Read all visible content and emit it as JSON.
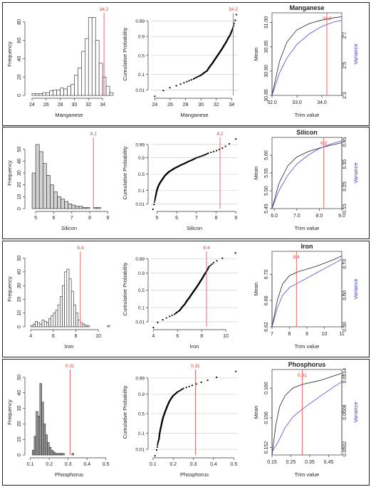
{
  "chart_data": [
    {
      "element": "Manganese",
      "cutoff": 34.2,
      "cutoff_label": "34.2",
      "histogram": {
        "type": "histogram",
        "xlabel": "Manganese",
        "ylabel": "Frequency",
        "fill": "#ffffff",
        "xlim": [
          23.5,
          35
        ],
        "ylim": [
          0,
          90
        ],
        "xticks": [
          "24",
          "26",
          "28",
          "30",
          "32",
          "34"
        ],
        "xtick_values": [
          24,
          26,
          28,
          30,
          32,
          34
        ],
        "yticks": [
          "0",
          "20",
          "40",
          "60",
          "80"
        ],
        "ytick_values": [
          0,
          20,
          40,
          60,
          80
        ],
        "bin_start": 24,
        "bin_width": 0.5,
        "counts": [
          2,
          2,
          2,
          3,
          3,
          5,
          6,
          6,
          8,
          7,
          10,
          12,
          22,
          30,
          48,
          62,
          85,
          85,
          60,
          35,
          20,
          10,
          3
        ]
      },
      "ecdf": {
        "type": "scatter",
        "xlabel": "Manganese",
        "ylabel": "Cumulative Probability",
        "xlim": [
          23.5,
          34.8
        ],
        "xticks": [
          "24",
          "26",
          "28",
          "30",
          "32",
          "34"
        ],
        "xtick_values": [
          24,
          26,
          28,
          30,
          32,
          34
        ],
        "yticks": [
          "0.01",
          "0.1",
          "0.5",
          "0.9",
          "0.99"
        ],
        "ytick_values": [
          0.01,
          0.1,
          0.5,
          0.9,
          0.99
        ],
        "x_min": 24.0,
        "x_max": 34.6,
        "n": 170,
        "curve": [
          [
            24.0,
            0.004
          ],
          [
            24.5,
            0.005
          ],
          [
            25.3,
            0.01
          ],
          [
            26.0,
            0.015
          ],
          [
            27.0,
            0.022
          ],
          [
            28.0,
            0.035
          ],
          [
            29.0,
            0.055
          ],
          [
            30.0,
            0.09
          ],
          [
            30.8,
            0.15
          ],
          [
            31.5,
            0.3
          ],
          [
            32.0,
            0.45
          ],
          [
            32.5,
            0.6
          ],
          [
            33.0,
            0.75
          ],
          [
            33.5,
            0.87
          ],
          [
            34.0,
            0.95
          ],
          [
            34.3,
            0.985
          ],
          [
            34.6,
            0.997
          ]
        ]
      },
      "trim": {
        "title": "Manganese",
        "xlabel": "Trim value",
        "ylabel_left": "Mean",
        "ylabel_right": "Variance",
        "xlim": [
          32.0,
          34.8
        ],
        "xticks": [
          "32.0",
          "33.0",
          "34.0"
        ],
        "xtick_values": [
          32.0,
          33.0,
          34.0
        ],
        "ylim_left": [
          30.85,
          31.02
        ],
        "yticks_left": [
          "30.85",
          "30.90",
          "30.95",
          "31.00"
        ],
        "ytick_values_left": [
          30.85,
          30.9,
          30.95,
          31.0
        ],
        "ylim_right": [
          2.3,
          2.85
        ],
        "yticks_right": [
          "2.3",
          "2.5",
          "2.7"
        ],
        "ytick_values_right": [
          2.3,
          2.5,
          2.7
        ],
        "mean": [
          [
            32.0,
            30.85
          ],
          [
            32.3,
            30.92
          ],
          [
            32.6,
            30.96
          ],
          [
            33.0,
            30.985
          ],
          [
            33.5,
            30.998
          ],
          [
            34.0,
            31.005
          ],
          [
            34.5,
            31.01
          ],
          [
            34.8,
            31.012
          ]
        ],
        "variance": [
          [
            32.0,
            2.3
          ],
          [
            32.3,
            2.45
          ],
          [
            32.6,
            2.55
          ],
          [
            33.0,
            2.64
          ],
          [
            33.5,
            2.71
          ],
          [
            34.0,
            2.76
          ],
          [
            34.5,
            2.79
          ],
          [
            34.8,
            2.8
          ]
        ]
      }
    },
    {
      "element": "Silicon",
      "cutoff": 8.2,
      "cutoff_label": "8.2",
      "histogram": {
        "type": "histogram",
        "xlabel": "Silicon",
        "ylabel": "Frequency",
        "fill": "#d3d3d3",
        "xlim": [
          4.6,
          9.1
        ],
        "ylim": [
          0,
          60
        ],
        "xticks": [
          "5",
          "6",
          "7",
          "8",
          "9"
        ],
        "xtick_values": [
          5,
          6,
          7,
          8,
          9
        ],
        "yticks": [
          "0",
          "10",
          "20",
          "30",
          "40",
          "50"
        ],
        "ytick_values": [
          0,
          10,
          20,
          30,
          40,
          50
        ],
        "bin_start": 4.8,
        "bin_width": 0.2,
        "counts": [
          30,
          54,
          48,
          38,
          28,
          20,
          14,
          10,
          8,
          6,
          4,
          3,
          2,
          2,
          1,
          1,
          0,
          1,
          1,
          0,
          0
        ]
      },
      "ecdf": {
        "type": "scatter",
        "xlabel": "Silicon",
        "ylabel": "Cumulative Probability",
        "xlim": [
          4.7,
          9.1
        ],
        "xticks": [
          "5",
          "6",
          "7",
          "8",
          "9"
        ],
        "xtick_values": [
          5,
          6,
          7,
          8,
          9
        ],
        "yticks": [
          "0.01",
          "0.1",
          "0.5",
          "0.9",
          "0.99"
        ],
        "ytick_values": [
          0.01,
          0.1,
          0.5,
          0.9,
          0.99
        ],
        "x_min": 4.8,
        "x_max": 9.0,
        "n": 170,
        "curve": [
          [
            4.8,
            0.003
          ],
          [
            4.85,
            0.008
          ],
          [
            4.9,
            0.02
          ],
          [
            4.95,
            0.05
          ],
          [
            5.0,
            0.1
          ],
          [
            5.1,
            0.2
          ],
          [
            5.25,
            0.32
          ],
          [
            5.4,
            0.45
          ],
          [
            5.6,
            0.57
          ],
          [
            5.9,
            0.68
          ],
          [
            6.2,
            0.76
          ],
          [
            6.6,
            0.84
          ],
          [
            7.0,
            0.9
          ],
          [
            7.6,
            0.95
          ],
          [
            8.2,
            0.975
          ],
          [
            8.6,
            0.99
          ],
          [
            9.0,
            0.997
          ]
        ]
      },
      "trim": {
        "title": "Silicon",
        "xlabel": "Trim value",
        "ylabel_left": "Mean",
        "ylabel_right": "Variance",
        "xlim": [
          5.9,
          9.0
        ],
        "xticks": [
          "6.0",
          "7.0",
          "8.0",
          "9.0"
        ],
        "xtick_values": [
          6.0,
          7.0,
          8.0,
          9.0
        ],
        "ylim_left": [
          5.45,
          5.65
        ],
        "yticks_left": [
          "5.45",
          "5.50",
          "5.55",
          "5.60"
        ],
        "ytick_values_left": [
          5.45,
          5.5,
          5.55,
          5.6
        ],
        "ylim_right": [
          0.15,
          0.47
        ],
        "yticks_right": [
          "0.15",
          "0.25",
          "0.35",
          "0.45"
        ],
        "ytick_values_right": [
          0.15,
          0.25,
          0.35,
          0.45
        ],
        "mean": [
          [
            5.9,
            5.45
          ],
          [
            6.2,
            5.52
          ],
          [
            6.6,
            5.57
          ],
          [
            7.0,
            5.595
          ],
          [
            7.5,
            5.61
          ],
          [
            8.0,
            5.62
          ],
          [
            8.5,
            5.628
          ],
          [
            9.0,
            5.635
          ]
        ],
        "variance": [
          [
            5.9,
            0.15
          ],
          [
            6.2,
            0.23
          ],
          [
            6.6,
            0.3
          ],
          [
            7.0,
            0.35
          ],
          [
            7.5,
            0.39
          ],
          [
            8.0,
            0.42
          ],
          [
            8.5,
            0.44
          ],
          [
            9.0,
            0.455
          ]
        ]
      }
    },
    {
      "element": "Iron",
      "cutoff": 8.4,
      "cutoff_label": "8.4",
      "histogram": {
        "type": "histogram",
        "xlabel": "Iron",
        "ylabel": "Frequency",
        "fill": "#ffffff",
        "xlim": [
          3.8,
          11
        ],
        "ylim": [
          0,
          55
        ],
        "xticks": [
          "4",
          "6",
          "8",
          "10"
        ],
        "xtick_values": [
          4,
          6,
          8,
          10
        ],
        "yticks": [
          "0",
          "10",
          "20",
          "30",
          "40",
          "50"
        ],
        "ytick_values": [
          0,
          10,
          20,
          30,
          40,
          50
        ],
        "bin_start": 4.0,
        "bin_width": 0.2,
        "counts": [
          1,
          2,
          4,
          3,
          2,
          5,
          4,
          3,
          6,
          8,
          10,
          12,
          16,
          22,
          30,
          40,
          42,
          35,
          26,
          16,
          10,
          5,
          3,
          2,
          1,
          1,
          0,
          0,
          0,
          0,
          0,
          0,
          0,
          0,
          1
        ]
      },
      "ecdf": {
        "type": "scatter",
        "xlabel": "Iron",
        "ylabel": "Cumulative Probability",
        "xlim": [
          3.8,
          11
        ],
        "xticks": [
          "4",
          "6",
          "8",
          "10"
        ],
        "xtick_values": [
          4,
          6,
          8,
          10
        ],
        "yticks": [
          "0.01",
          "0.1",
          "0.5",
          "0.9",
          "0.99"
        ],
        "ytick_values": [
          0.01,
          0.1,
          0.5,
          0.9,
          0.99
        ],
        "x_min": 4.0,
        "x_max": 10.8,
        "n": 170,
        "curve": [
          [
            4.0,
            0.004
          ],
          [
            4.3,
            0.008
          ],
          [
            4.8,
            0.015
          ],
          [
            5.3,
            0.025
          ],
          [
            5.8,
            0.04
          ],
          [
            6.2,
            0.07
          ],
          [
            6.6,
            0.15
          ],
          [
            7.0,
            0.3
          ],
          [
            7.3,
            0.45
          ],
          [
            7.6,
            0.6
          ],
          [
            7.9,
            0.75
          ],
          [
            8.2,
            0.87
          ],
          [
            8.4,
            0.92
          ],
          [
            8.6,
            0.96
          ],
          [
            9.0,
            0.98
          ],
          [
            9.5,
            0.99
          ],
          [
            10.8,
            0.997
          ]
        ]
      },
      "trim": {
        "title": "Iron",
        "xlabel": "Trim value",
        "ylabel_left": "Mean",
        "ylabel_right": "Variance",
        "xlim": [
          7.0,
          11.0
        ],
        "xticks": [
          "7",
          "8",
          "9",
          "10",
          "11"
        ],
        "xtick_values": [
          7,
          8,
          9,
          10,
          11
        ],
        "ylim_left": [
          6.62,
          6.735
        ],
        "yticks_left": [
          "6.62",
          "6.66",
          "6.70"
        ],
        "ytick_values_left": [
          6.62,
          6.66,
          6.7
        ],
        "ylim_right": [
          0.5,
          0.74
        ],
        "yticks_right": [
          "0.50",
          "0.60",
          "0.70"
        ],
        "ytick_values_right": [
          0.5,
          0.6,
          0.7
        ],
        "mean": [
          [
            7.0,
            6.62
          ],
          [
            7.3,
            6.66
          ],
          [
            7.6,
            6.685
          ],
          [
            8.0,
            6.698
          ],
          [
            8.5,
            6.704
          ],
          [
            9.5,
            6.712
          ],
          [
            10.5,
            6.722
          ],
          [
            11.0,
            6.728
          ]
        ],
        "variance": [
          [
            7.0,
            0.5
          ],
          [
            7.3,
            0.56
          ],
          [
            7.6,
            0.6
          ],
          [
            8.0,
            0.625
          ],
          [
            8.5,
            0.64
          ],
          [
            9.5,
            0.67
          ],
          [
            10.5,
            0.7
          ],
          [
            11.0,
            0.715
          ]
        ]
      }
    },
    {
      "element": "Phosphorus",
      "cutoff": 0.31,
      "cutoff_label": "0.31",
      "histogram": {
        "type": "histogram",
        "xlabel": "Phosphorus",
        "ylabel": "Frequency",
        "fill": "#9e9e9e",
        "xlim": [
          0.09,
          0.52
        ],
        "ylim": [
          0,
          55
        ],
        "xticks": [
          "0.1",
          "0.2",
          "0.3",
          "0.4",
          "0.5"
        ],
        "xtick_values": [
          0.1,
          0.2,
          0.3,
          0.4,
          0.5
        ],
        "yticks": [
          "0",
          "10",
          "20",
          "30",
          "40",
          "50"
        ],
        "ytick_values": [
          0,
          10,
          20,
          30,
          40,
          50
        ],
        "bin_start": 0.11,
        "bin_width": 0.01,
        "counts": [
          3,
          12,
          28,
          25,
          46,
          34,
          20,
          13,
          8,
          5,
          3,
          2,
          1,
          1,
          1,
          1,
          1,
          0,
          0,
          0,
          0,
          1
        ]
      },
      "ecdf": {
        "type": "scatter",
        "xlabel": "Phosphorus",
        "ylabel": "Cumulative Probability",
        "xlim": [
          0.09,
          0.52
        ],
        "xticks": [
          "0.1",
          "0.2",
          "0.3",
          "0.4",
          "0.5"
        ],
        "xtick_values": [
          0.1,
          0.2,
          0.3,
          0.4,
          0.5
        ],
        "yticks": [
          "0.01",
          "0.1",
          "0.5",
          "0.9",
          "0.99"
        ],
        "ytick_values": [
          0.01,
          0.1,
          0.5,
          0.9,
          0.99
        ],
        "x_min": 0.11,
        "x_max": 0.51,
        "n": 170,
        "curve": [
          [
            0.11,
            0.004
          ],
          [
            0.12,
            0.01
          ],
          [
            0.13,
            0.05
          ],
          [
            0.14,
            0.2
          ],
          [
            0.15,
            0.4
          ],
          [
            0.16,
            0.55
          ],
          [
            0.17,
            0.68
          ],
          [
            0.18,
            0.78
          ],
          [
            0.19,
            0.84
          ],
          [
            0.2,
            0.88
          ],
          [
            0.22,
            0.92
          ],
          [
            0.25,
            0.95
          ],
          [
            0.3,
            0.97
          ],
          [
            0.35,
            0.982
          ],
          [
            0.4,
            0.99
          ],
          [
            0.45,
            0.994
          ],
          [
            0.51,
            0.997
          ]
        ]
      },
      "trim": {
        "title": "Phosphorus",
        "xlabel": "Trim value",
        "ylabel_left": "Mean",
        "ylabel_right": "Variance",
        "xlim": [
          0.15,
          0.52
        ],
        "xticks": [
          "0.15",
          "0.25",
          "0.35",
          "0.45"
        ],
        "xtick_values": [
          0.15,
          0.25,
          0.35,
          0.45
        ],
        "ylim_left": [
          0.151,
          0.1625
        ],
        "yticks_left": [
          "0.152",
          "0.156",
          "0.160"
        ],
        "ytick_values_left": [
          0.152,
          0.156,
          0.16
        ],
        "ylim_right": [
          0.0001,
          0.0015
        ],
        "yticks_right": [
          "0.0002",
          "0.0008",
          "0.0014"
        ],
        "ytick_values_right": [
          0.0002,
          0.0008,
          0.0014
        ],
        "mean": [
          [
            0.15,
            0.151
          ],
          [
            0.17,
            0.155
          ],
          [
            0.19,
            0.1575
          ],
          [
            0.22,
            0.159
          ],
          [
            0.26,
            0.16
          ],
          [
            0.31,
            0.1605
          ],
          [
            0.4,
            0.161
          ],
          [
            0.52,
            0.162
          ]
        ],
        "variance": [
          [
            0.15,
            0.00015
          ],
          [
            0.18,
            0.0003
          ],
          [
            0.22,
            0.00055
          ],
          [
            0.26,
            0.00072
          ],
          [
            0.31,
            0.00085
          ],
          [
            0.4,
            0.00105
          ],
          [
            0.47,
            0.0012
          ],
          [
            0.52,
            0.0013
          ]
        ]
      }
    }
  ],
  "colors": {
    "cutoff_line": "#e8575a",
    "cutoff_label": "#e03c31",
    "mean_line": "#222222",
    "variance_line": "#4b4bd6",
    "variance_label": "#3b3bd1",
    "grid": "#c8c8c8",
    "axis": "#333333"
  }
}
